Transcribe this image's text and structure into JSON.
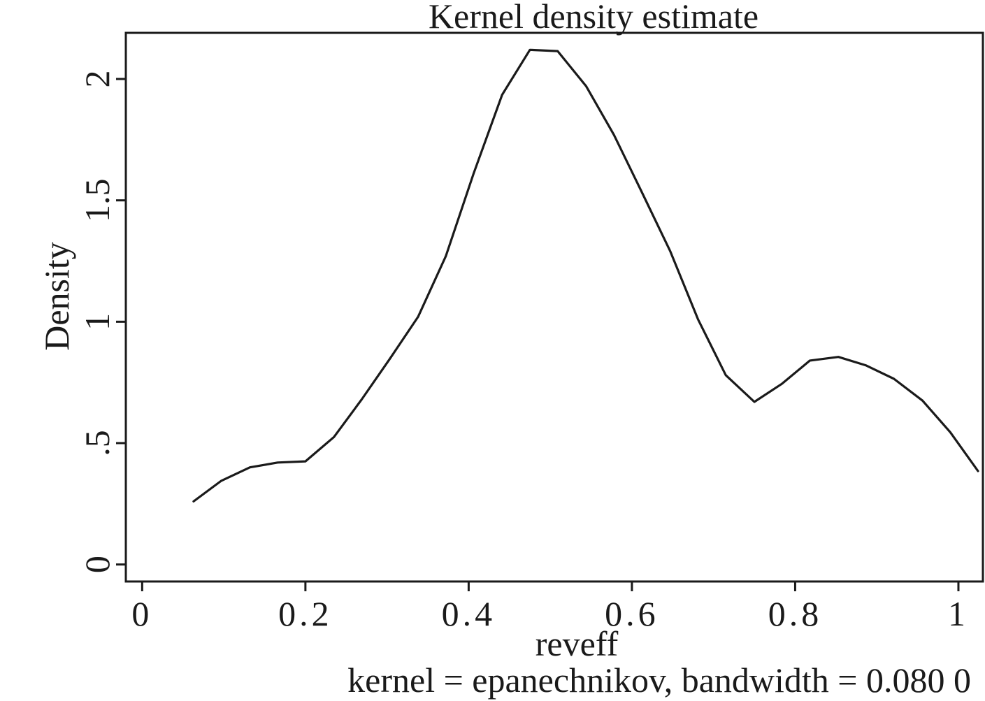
{
  "chart_data": {
    "type": "line",
    "title": "Kernel density estimate",
    "xlabel": "reveff",
    "ylabel": "Density",
    "note": "kernel = epanechnikov, bandwidth = 0.080 0",
    "xlim": [
      -0.02,
      1.03
    ],
    "ylim": [
      -0.07,
      2.19
    ],
    "x_ticks": [
      {
        "value": 0,
        "label": "0"
      },
      {
        "value": 0.2,
        "label": "0.2"
      },
      {
        "value": 0.4,
        "label": "0.4"
      },
      {
        "value": 0.6,
        "label": "0.6"
      },
      {
        "value": 0.8,
        "label": "0.8"
      },
      {
        "value": 1,
        "label": "1"
      }
    ],
    "y_ticks": [
      {
        "value": 0,
        "label": "0"
      },
      {
        "value": 0.5,
        "label": ".5"
      },
      {
        "value": 1,
        "label": "1"
      },
      {
        "value": 1.5,
        "label": "1.5"
      },
      {
        "value": 2,
        "label": "2"
      }
    ],
    "grid": false,
    "line_color": "#1a1a1a",
    "series": [
      {
        "x": [
          0.063,
          0.097,
          0.132,
          0.166,
          0.2,
          0.235,
          0.269,
          0.303,
          0.338,
          0.372,
          0.406,
          0.441,
          0.475,
          0.509,
          0.544,
          0.578,
          0.612,
          0.647,
          0.681,
          0.715,
          0.75,
          0.784,
          0.818,
          0.853,
          0.887,
          0.921,
          0.956,
          0.99,
          1.024
        ],
        "y": [
          0.26,
          0.345,
          0.4,
          0.42,
          0.425,
          0.525,
          0.68,
          0.845,
          1.02,
          1.27,
          1.61,
          1.935,
          2.12,
          2.115,
          1.97,
          1.77,
          1.535,
          1.29,
          1.01,
          0.78,
          0.67,
          0.745,
          0.84,
          0.855,
          0.82,
          0.765,
          0.675,
          0.545,
          0.385
        ]
      }
    ]
  }
}
